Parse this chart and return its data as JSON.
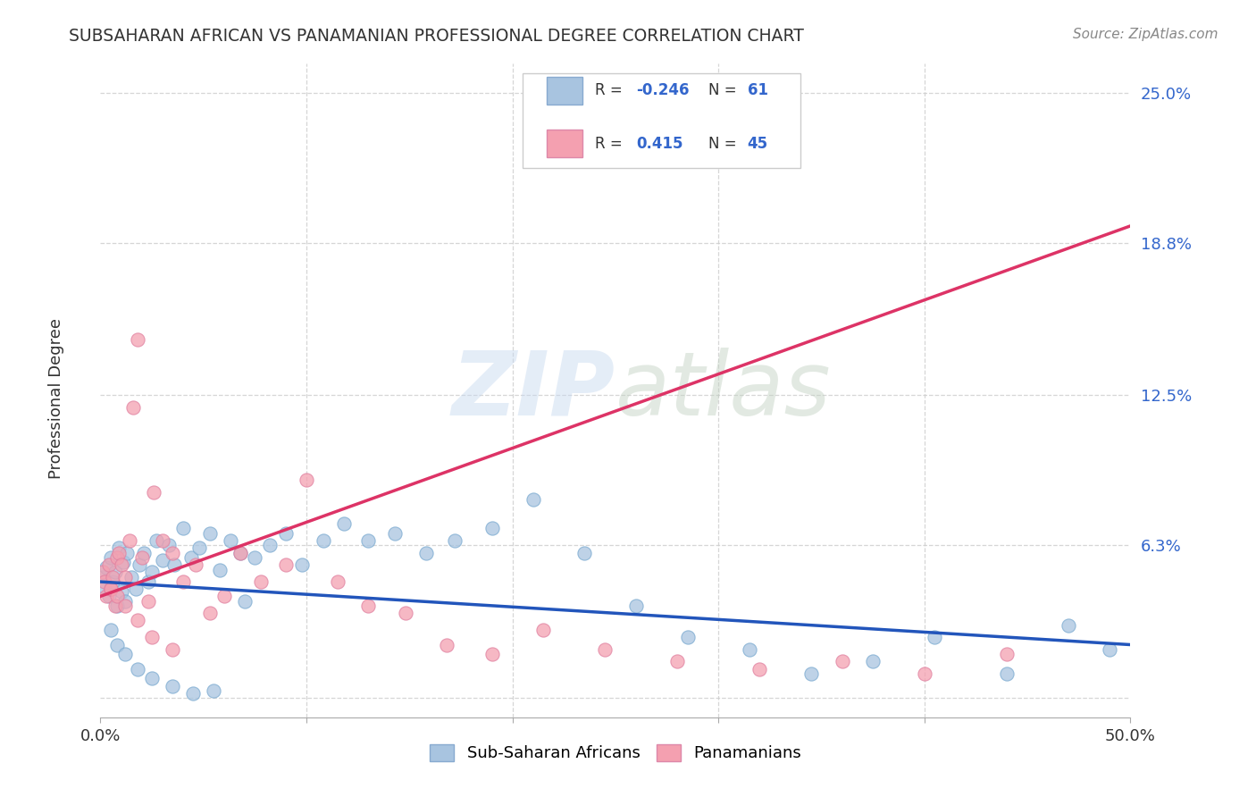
{
  "title": "SUBSAHARAN AFRICAN VS PANAMANIAN PROFESSIONAL DEGREE CORRELATION CHART",
  "source": "Source: ZipAtlas.com",
  "ylabel": "Professional Degree",
  "xmin": 0.0,
  "xmax": 0.5,
  "ymin": -0.008,
  "ymax": 0.262,
  "ytick_vals": [
    0.0,
    0.063,
    0.125,
    0.188,
    0.25
  ],
  "ytick_labels": [
    "",
    "6.3%",
    "12.5%",
    "18.8%",
    "25.0%"
  ],
  "xtick_vals": [
    0.0,
    0.1,
    0.2,
    0.3,
    0.4,
    0.5
  ],
  "xtick_labels": [
    "0.0%",
    "",
    "",
    "",
    "",
    "50.0%"
  ],
  "watermark_zip": "ZIP",
  "watermark_atlas": "atlas",
  "blue_color": "#a8c4e0",
  "pink_color": "#f4a0b0",
  "line_blue": "#2255bb",
  "line_pink": "#dd3366",
  "bg": "#ffffff",
  "grid_color": "#cccccc",
  "blue_line_y_start": 0.048,
  "blue_line_y_end": 0.022,
  "pink_line_y_start": 0.042,
  "pink_line_y_end": 0.195,
  "blue_scatter_x": [
    0.001,
    0.002,
    0.003,
    0.004,
    0.005,
    0.006,
    0.007,
    0.008,
    0.009,
    0.01,
    0.011,
    0.012,
    0.013,
    0.015,
    0.017,
    0.019,
    0.021,
    0.023,
    0.025,
    0.027,
    0.03,
    0.033,
    0.036,
    0.04,
    0.044,
    0.048,
    0.053,
    0.058,
    0.063,
    0.068,
    0.075,
    0.082,
    0.09,
    0.098,
    0.108,
    0.118,
    0.13,
    0.143,
    0.158,
    0.172,
    0.19,
    0.21,
    0.235,
    0.26,
    0.285,
    0.315,
    0.345,
    0.375,
    0.405,
    0.44,
    0.47,
    0.49,
    0.005,
    0.008,
    0.012,
    0.018,
    0.025,
    0.035,
    0.045,
    0.055,
    0.07
  ],
  "blue_scatter_y": [
    0.05,
    0.046,
    0.054,
    0.042,
    0.058,
    0.048,
    0.052,
    0.038,
    0.062,
    0.044,
    0.056,
    0.04,
    0.06,
    0.05,
    0.045,
    0.055,
    0.06,
    0.048,
    0.052,
    0.065,
    0.057,
    0.063,
    0.055,
    0.07,
    0.058,
    0.062,
    0.068,
    0.053,
    0.065,
    0.06,
    0.058,
    0.063,
    0.068,
    0.055,
    0.065,
    0.072,
    0.065,
    0.068,
    0.06,
    0.065,
    0.07,
    0.082,
    0.06,
    0.038,
    0.025,
    0.02,
    0.01,
    0.015,
    0.025,
    0.01,
    0.03,
    0.02,
    0.028,
    0.022,
    0.018,
    0.012,
    0.008,
    0.005,
    0.002,
    0.003,
    0.04
  ],
  "pink_scatter_x": [
    0.001,
    0.002,
    0.003,
    0.004,
    0.005,
    0.006,
    0.007,
    0.008,
    0.009,
    0.01,
    0.012,
    0.014,
    0.016,
    0.018,
    0.02,
    0.023,
    0.026,
    0.03,
    0.035,
    0.04,
    0.046,
    0.053,
    0.06,
    0.068,
    0.078,
    0.09,
    0.1,
    0.115,
    0.13,
    0.148,
    0.168,
    0.19,
    0.215,
    0.245,
    0.28,
    0.32,
    0.36,
    0.4,
    0.44,
    0.005,
    0.008,
    0.012,
    0.018,
    0.025,
    0.035
  ],
  "pink_scatter_y": [
    0.052,
    0.048,
    0.042,
    0.055,
    0.045,
    0.05,
    0.038,
    0.058,
    0.06,
    0.055,
    0.05,
    0.065,
    0.12,
    0.148,
    0.058,
    0.04,
    0.085,
    0.065,
    0.06,
    0.048,
    0.055,
    0.035,
    0.042,
    0.06,
    0.048,
    0.055,
    0.09,
    0.048,
    0.038,
    0.035,
    0.022,
    0.018,
    0.028,
    0.02,
    0.015,
    0.012,
    0.015,
    0.01,
    0.018,
    0.045,
    0.042,
    0.038,
    0.032,
    0.025,
    0.02
  ]
}
